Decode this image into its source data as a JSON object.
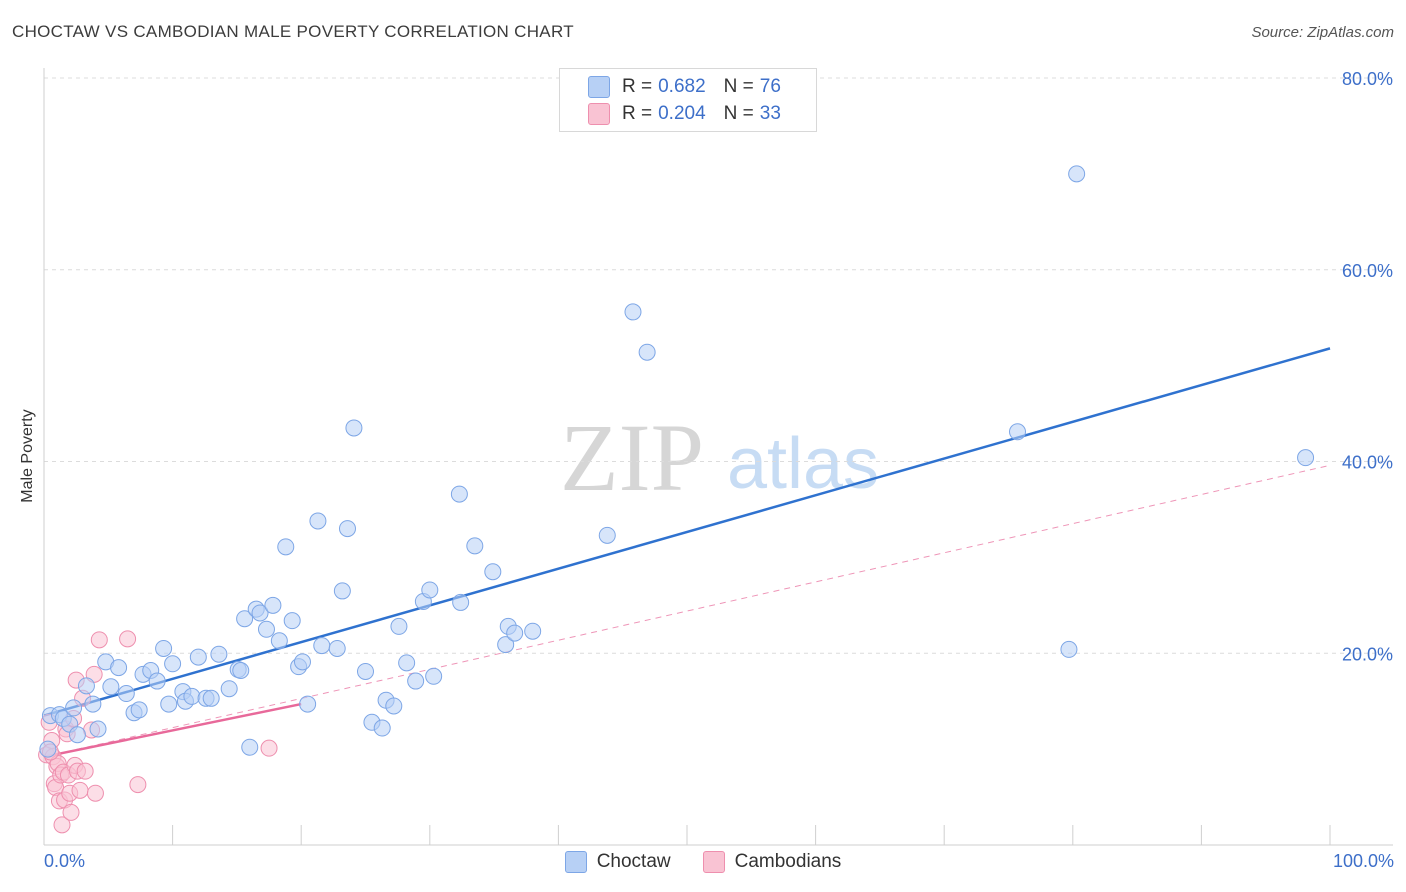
{
  "title": "CHOCTAW VS CAMBODIAN MALE POVERTY CORRELATION CHART",
  "source": "Source: ZipAtlas.com",
  "watermark": {
    "zip": "ZIP",
    "atlas": "atlas"
  },
  "colors": {
    "choctaw_fill": "#b7d0f5",
    "choctaw_stroke": "#7da6e6",
    "choctaw_line": "#2f72cf",
    "cambodian_fill": "#f9c3d3",
    "cambodian_stroke": "#ee8fae",
    "cambodian_line": "#e8699a",
    "tick_label": "#3d6fc9",
    "grid": "#dcdcdc"
  },
  "legend_top": {
    "rows": [
      {
        "r_label": "R =",
        "r_value": "0.682",
        "n_label": "N =",
        "n_value": "76"
      },
      {
        "r_label": "R =",
        "r_value": "0.204",
        "n_label": "N =",
        "n_value": "33"
      }
    ]
  },
  "legend_bottom": [
    "Choctaw",
    "Cambodians"
  ],
  "x_tick_labels": {
    "left": "0.0%",
    "right": "100.0%"
  },
  "chart_data": {
    "type": "scatter",
    "title": "CHOCTAW VS CAMBODIAN MALE POVERTY CORRELATION CHART",
    "xlabel": "",
    "ylabel": "Male Poverty",
    "xlim": [
      0,
      100
    ],
    "ylim": [
      0,
      80
    ],
    "y_ticks": [
      20,
      40,
      60,
      80
    ],
    "y_tick_labels": [
      "20.0%",
      "40.0%",
      "60.0%",
      "80.0%"
    ],
    "grid": true,
    "legend_position": "top-center",
    "series": [
      {
        "name": "Choctaw",
        "r": 0.682,
        "n": 76,
        "trend": {
          "x": [
            0,
            100
          ],
          "y": [
            13.5,
            51.8
          ],
          "style": "solid"
        },
        "points": [
          [
            0.5,
            13.5
          ],
          [
            1.2,
            13.6
          ],
          [
            1.5,
            13.2
          ],
          [
            2.0,
            12.6
          ],
          [
            2.3,
            14.3
          ],
          [
            2.6,
            11.5
          ],
          [
            3.3,
            16.6
          ],
          [
            3.8,
            14.7
          ],
          [
            4.2,
            12.1
          ],
          [
            4.8,
            19.1
          ],
          [
            5.2,
            16.5
          ],
          [
            5.8,
            18.5
          ],
          [
            6.4,
            15.8
          ],
          [
            7.0,
            13.8
          ],
          [
            7.4,
            14.1
          ],
          [
            7.7,
            17.8
          ],
          [
            8.3,
            18.2
          ],
          [
            8.8,
            17.1
          ],
          [
            9.3,
            20.5
          ],
          [
            9.7,
            14.7
          ],
          [
            10.0,
            18.9
          ],
          [
            10.8,
            16.0
          ],
          [
            11.0,
            15.0
          ],
          [
            11.5,
            15.5
          ],
          [
            12.0,
            19.6
          ],
          [
            12.6,
            15.3
          ],
          [
            13.0,
            15.3
          ],
          [
            13.6,
            19.9
          ],
          [
            14.4,
            16.3
          ],
          [
            15.1,
            18.3
          ],
          [
            15.3,
            18.2
          ],
          [
            15.6,
            23.6
          ],
          [
            16.0,
            10.2
          ],
          [
            16.5,
            24.6
          ],
          [
            16.8,
            24.2
          ],
          [
            17.3,
            22.5
          ],
          [
            17.8,
            25.0
          ],
          [
            18.3,
            21.3
          ],
          [
            18.8,
            31.1
          ],
          [
            19.3,
            23.4
          ],
          [
            19.8,
            18.6
          ],
          [
            20.1,
            19.1
          ],
          [
            20.5,
            14.7
          ],
          [
            21.3,
            33.8
          ],
          [
            21.6,
            20.8
          ],
          [
            22.8,
            20.5
          ],
          [
            23.2,
            26.5
          ],
          [
            23.6,
            33.0
          ],
          [
            24.1,
            43.5
          ],
          [
            25.0,
            18.1
          ],
          [
            25.5,
            12.8
          ],
          [
            26.3,
            12.2
          ],
          [
            26.6,
            15.1
          ],
          [
            27.2,
            14.5
          ],
          [
            27.6,
            22.8
          ],
          [
            28.2,
            19.0
          ],
          [
            28.9,
            17.1
          ],
          [
            29.5,
            25.4
          ],
          [
            30.0,
            26.6
          ],
          [
            30.3,
            17.6
          ],
          [
            32.3,
            36.6
          ],
          [
            32.4,
            25.3
          ],
          [
            33.5,
            31.2
          ],
          [
            34.9,
            28.5
          ],
          [
            35.9,
            20.9
          ],
          [
            36.1,
            22.8
          ],
          [
            36.6,
            22.1
          ],
          [
            38.0,
            22.3
          ],
          [
            43.8,
            32.3
          ],
          [
            45.8,
            55.6
          ],
          [
            46.9,
            51.4
          ],
          [
            75.7,
            43.1
          ],
          [
            79.7,
            20.4
          ],
          [
            80.3,
            70.0
          ],
          [
            98.1,
            40.4
          ],
          [
            0.3,
            10.0
          ]
        ]
      },
      {
        "name": "Cambodians",
        "r": 0.204,
        "n": 33,
        "trend": {
          "x": [
            0,
            20
          ],
          "y": [
            9.2,
            14.7
          ],
          "style": "solid",
          "extended": {
            "x": [
              0,
              100
            ],
            "y": [
              9.2,
              39.6
            ],
            "style": "dashed"
          }
        },
        "points": [
          [
            0.2,
            9.4
          ],
          [
            0.4,
            12.8
          ],
          [
            0.6,
            10.9
          ],
          [
            0.7,
            9.2
          ],
          [
            0.8,
            6.4
          ],
          [
            0.9,
            6.0
          ],
          [
            1.0,
            8.2
          ],
          [
            1.1,
            8.5
          ],
          [
            1.2,
            4.6
          ],
          [
            1.3,
            7.3
          ],
          [
            1.4,
            2.1
          ],
          [
            1.5,
            7.6
          ],
          [
            1.6,
            4.7
          ],
          [
            1.7,
            12.1
          ],
          [
            1.8,
            11.6
          ],
          [
            1.9,
            7.3
          ],
          [
            2.0,
            5.4
          ],
          [
            2.1,
            3.4
          ],
          [
            2.3,
            13.2
          ],
          [
            2.4,
            8.3
          ],
          [
            2.5,
            17.2
          ],
          [
            2.6,
            7.7
          ],
          [
            2.8,
            5.7
          ],
          [
            3.0,
            15.3
          ],
          [
            3.2,
            7.7
          ],
          [
            3.7,
            12.0
          ],
          [
            3.9,
            17.8
          ],
          [
            4.0,
            5.4
          ],
          [
            4.3,
            21.4
          ],
          [
            6.5,
            21.5
          ],
          [
            7.3,
            6.3
          ],
          [
            17.5,
            10.1
          ],
          [
            0.5,
            9.7
          ]
        ]
      }
    ]
  }
}
